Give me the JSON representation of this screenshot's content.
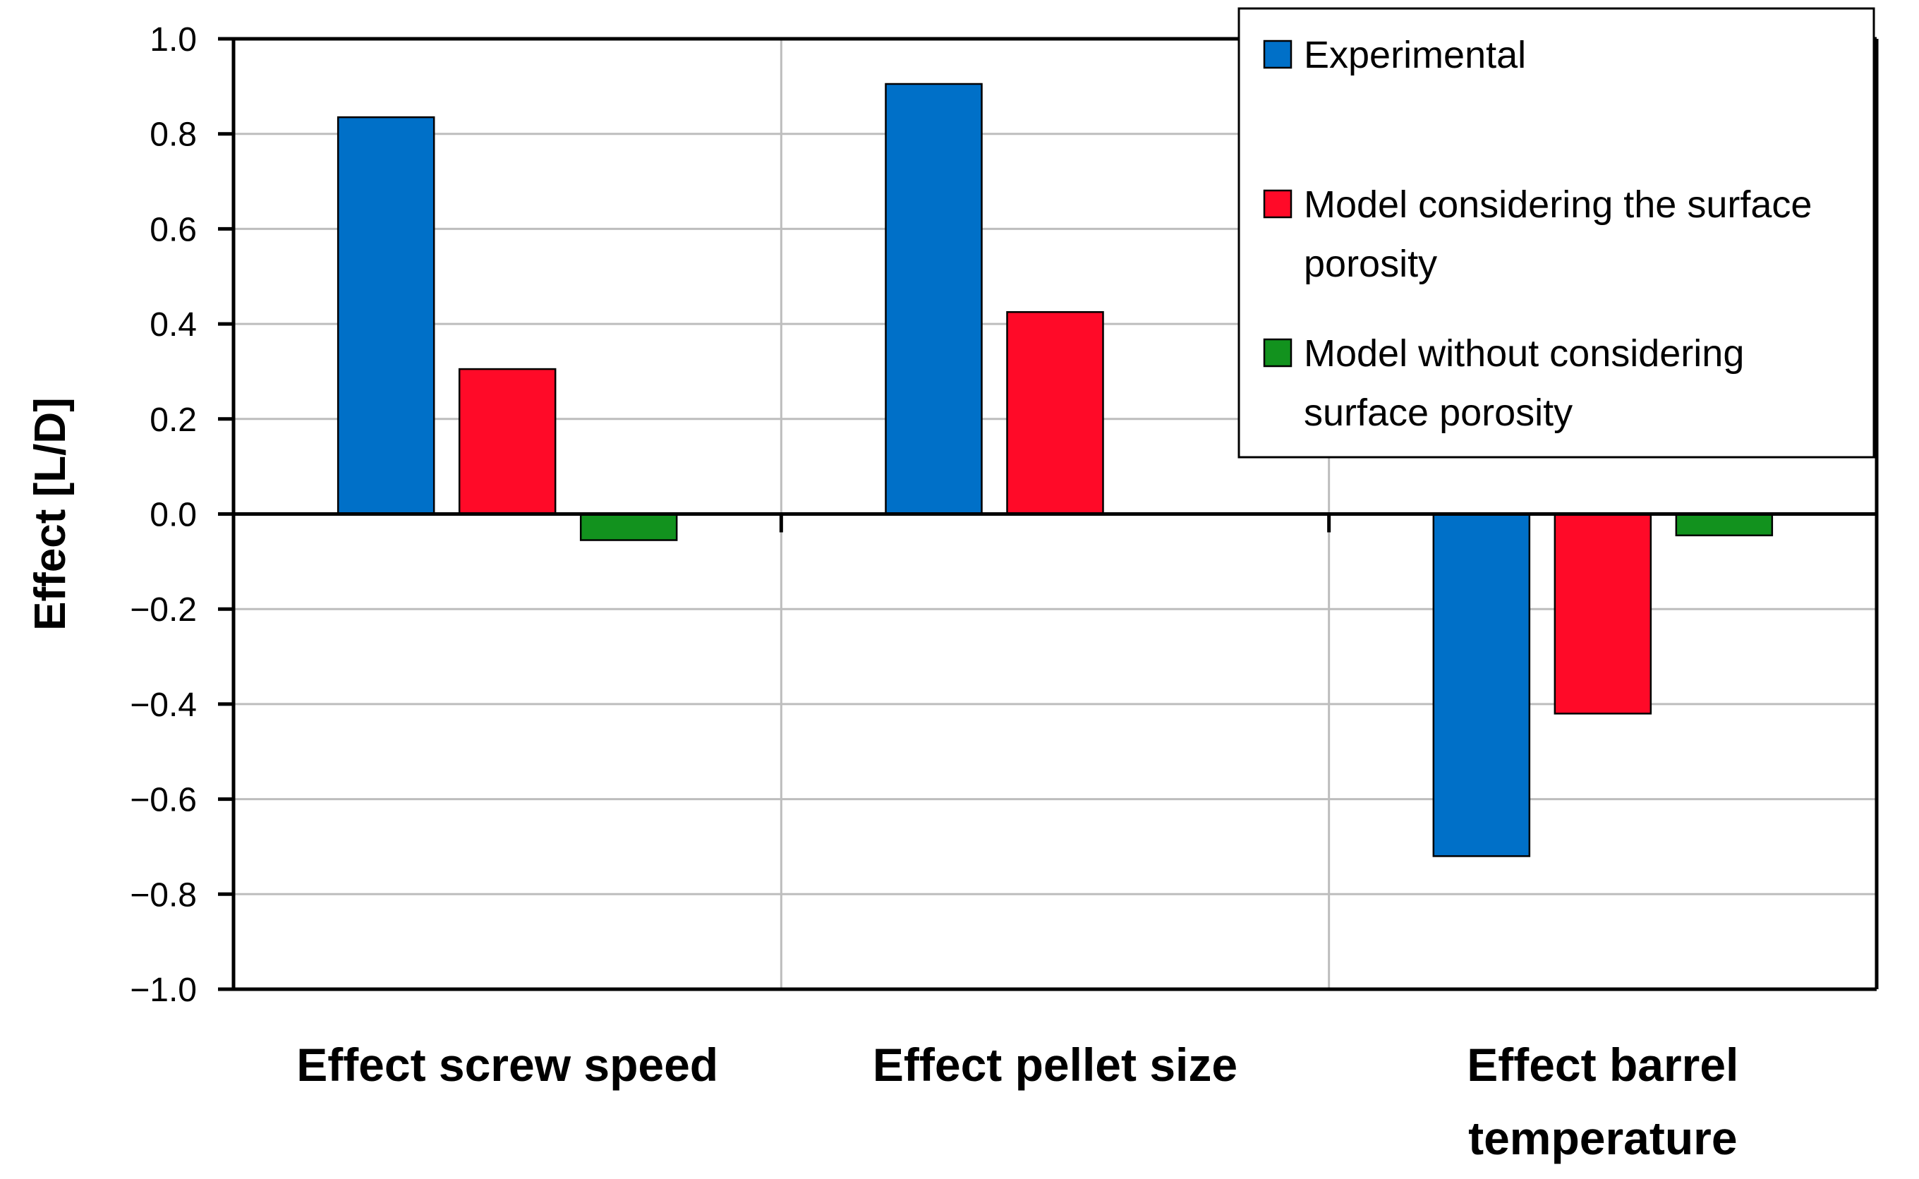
{
  "chart_data": {
    "type": "bar",
    "title": "",
    "xlabel": "",
    "ylabel": "Effect [L/D]",
    "ylim": [
      -1.0,
      1.0
    ],
    "yticks": [
      "1.0",
      "0.8",
      "0.6",
      "0.4",
      "0.2",
      "0.0",
      "−0.2",
      "−0.4",
      "−0.6",
      "−0.8",
      "−1.0"
    ],
    "ytick_values": [
      1.0,
      0.8,
      0.6,
      0.4,
      0.2,
      0.0,
      -0.2,
      -0.4,
      -0.6,
      -0.8,
      -1.0
    ],
    "categories": [
      [
        "Effect screw speed"
      ],
      [
        "Effect pellet size"
      ],
      [
        "Effect barrel",
        "temperature"
      ]
    ],
    "series": [
      {
        "name": "Experimental",
        "color": "#0070C8",
        "values": [
          0.835,
          0.905,
          -0.72
        ]
      },
      {
        "name": "Model considering the surface porosity",
        "color": "#FF0A28",
        "values": [
          0.305,
          0.425,
          -0.42
        ]
      },
      {
        "name": "Model without considering surface porosity",
        "color": "#12921E",
        "values": [
          -0.055,
          null,
          -0.045
        ]
      }
    ],
    "legend": {
      "position": "top-right",
      "entries": [
        [
          "Experimental"
        ],
        [
          "Model considering the surface",
          "porosity"
        ],
        [
          "Model without considering",
          "surface porosity"
        ]
      ]
    },
    "grid": true
  }
}
